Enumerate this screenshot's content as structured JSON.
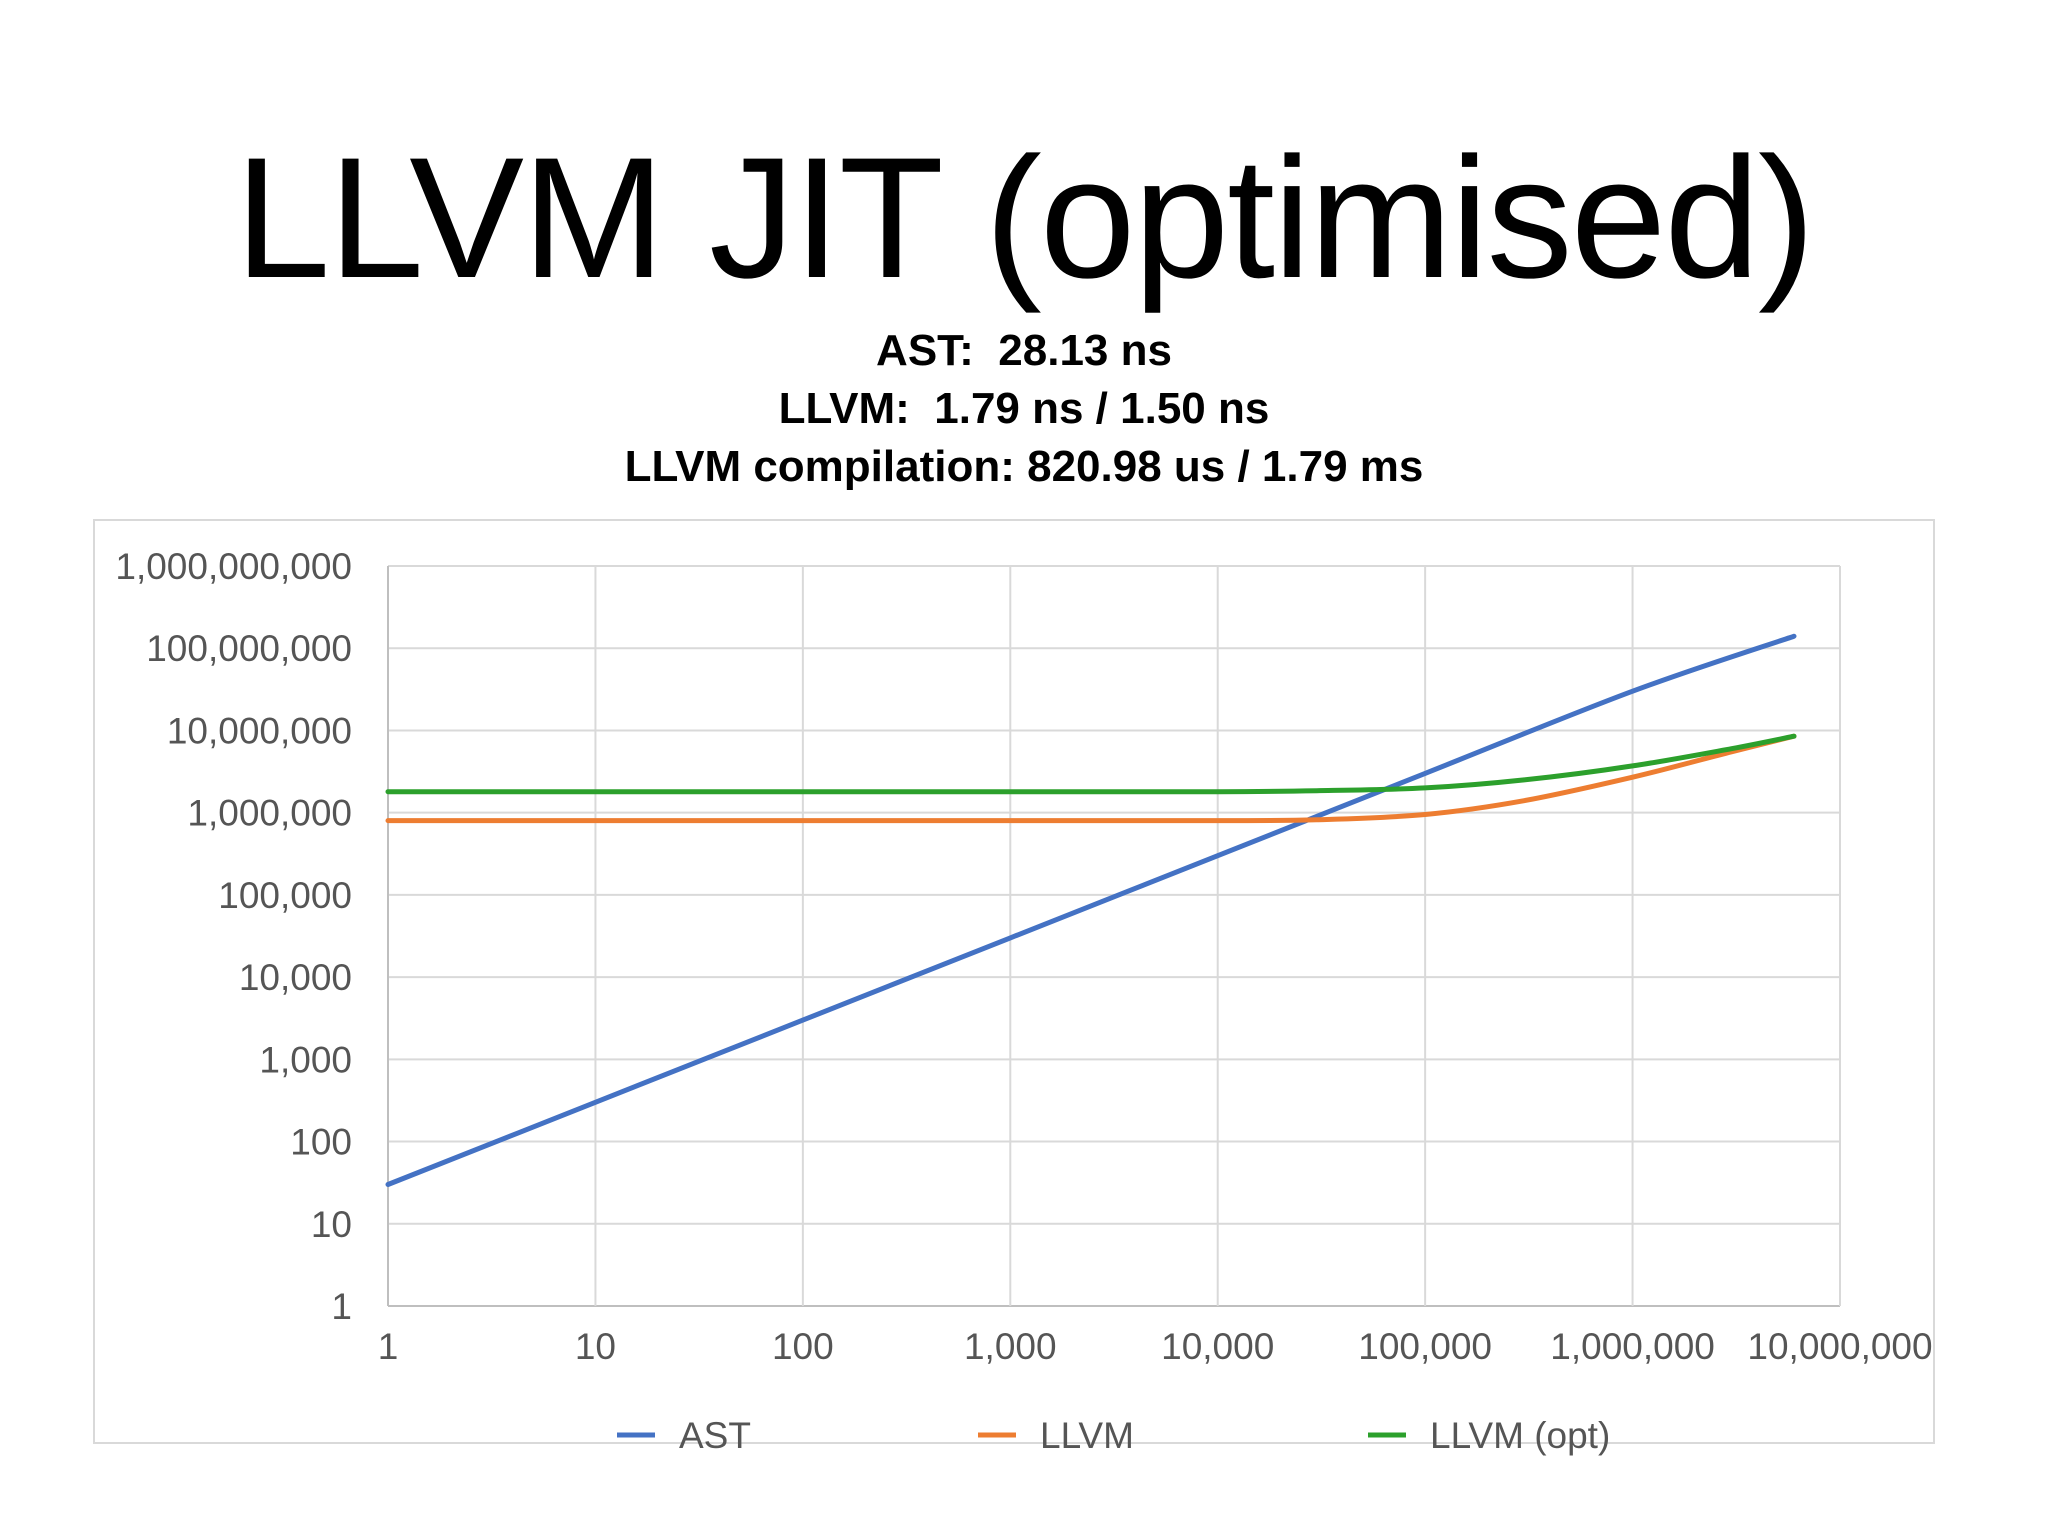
{
  "title": "LLVM JIT (optimised)",
  "subtitle_lines": [
    "AST:  28.13 ns",
    "LLVM:  1.79 ns / 1.50 ns",
    "LLVM compilation: 820.98 us / 1.79 ms"
  ],
  "chart_data": {
    "type": "line",
    "title": "",
    "xlabel": "",
    "ylabel": "",
    "x_scale": "log",
    "y_scale": "log",
    "xlim": [
      1,
      10000000
    ],
    "ylim": [
      1,
      1000000000
    ],
    "grid": true,
    "legend_position": "bottom",
    "x_tick_labels": [
      "1",
      "10",
      "100",
      "1,000",
      "10,000",
      "100,000",
      "1,000,000",
      "10,000,000"
    ],
    "y_tick_labels": [
      "1",
      "10",
      "100",
      "1,000",
      "10,000",
      "100,000",
      "1,000,000",
      "10,000,000",
      "100,000,000",
      "1,000,000,000"
    ],
    "series": [
      {
        "name": "AST",
        "color": "#4472c4",
        "points": [
          [
            1,
            30
          ],
          [
            10,
            300
          ],
          [
            100,
            3000
          ],
          [
            1000,
            30000
          ],
          [
            10000,
            300000
          ],
          [
            100000,
            3000000
          ],
          [
            1000000,
            30000000
          ],
          [
            6000000,
            140000000
          ]
        ]
      },
      {
        "name": "LLVM",
        "color": "#ed7d31",
        "points": [
          [
            1,
            800000
          ],
          [
            10,
            800000
          ],
          [
            100,
            800000
          ],
          [
            1000,
            800000
          ],
          [
            10000,
            800000
          ],
          [
            30000,
            820000
          ],
          [
            100000,
            950000
          ],
          [
            300000,
            1400000
          ],
          [
            1000000,
            2700000
          ],
          [
            3000000,
            5500000
          ],
          [
            6000000,
            8500000
          ]
        ]
      },
      {
        "name": "LLVM (opt)",
        "color": "#2ca02c",
        "points": [
          [
            1,
            1800000
          ],
          [
            10,
            1800000
          ],
          [
            100,
            1800000
          ],
          [
            1000,
            1800000
          ],
          [
            10000,
            1800000
          ],
          [
            30000,
            1850000
          ],
          [
            100000,
            2000000
          ],
          [
            300000,
            2500000
          ],
          [
            1000000,
            3700000
          ],
          [
            3000000,
            6000000
          ],
          [
            6000000,
            8500000
          ]
        ]
      }
    ]
  }
}
